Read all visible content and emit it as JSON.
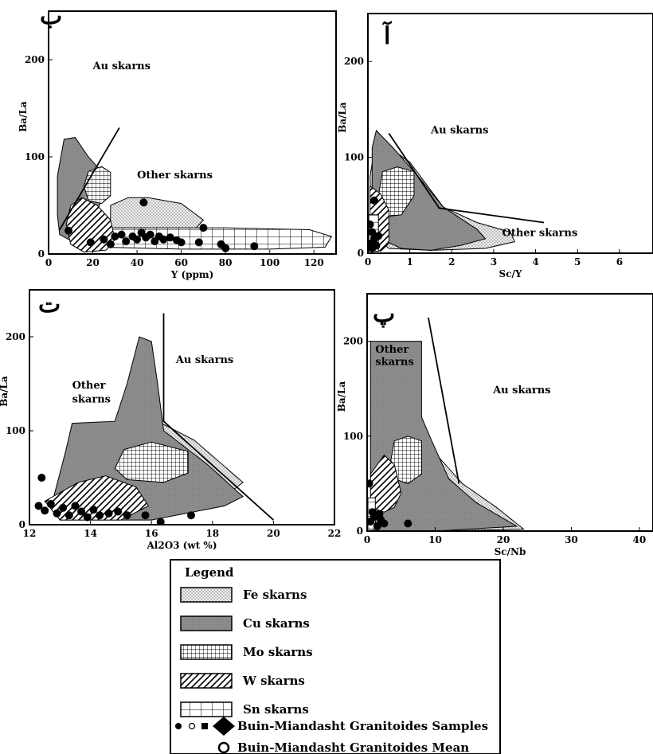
{
  "chart_data": [
    {
      "type": "scatter",
      "panel_letter": "ب",
      "xlabel": "Y (ppm)",
      "ylabel": "Ba/La",
      "xlim": [
        0,
        130
      ],
      "ylim": [
        0,
        250
      ],
      "xticks": [
        "0",
        "20",
        "40",
        "60",
        "80",
        "100",
        "120"
      ],
      "yticks": [
        "0",
        "100",
        "200"
      ],
      "zone_labels": [
        {
          "text": "Au skarns",
          "x": 20,
          "y": 190
        },
        {
          "text": "Other skarns",
          "x": 40,
          "y": 78
        }
      ],
      "boundary": [
        [
          5,
          25
        ],
        [
          32,
          130
        ]
      ],
      "fields": [
        {
          "name": "Fe skarns",
          "points": [
            [
              28,
              50
            ],
            [
              36,
              58
            ],
            [
              45,
              58
            ],
            [
              60,
              52
            ],
            [
              70,
              35
            ],
            [
              66,
              25
            ],
            [
              55,
              20
            ],
            [
              36,
              20
            ],
            [
              28,
              25
            ]
          ]
        },
        {
          "name": "Cu skarns",
          "points": [
            [
              7,
              118
            ],
            [
              12,
              120
            ],
            [
              18,
              100
            ],
            [
              25,
              82
            ],
            [
              25,
              60
            ],
            [
              20,
              35
            ],
            [
              14,
              25
            ],
            [
              9,
              15
            ],
            [
              5,
              20
            ],
            [
              4,
              40
            ],
            [
              4,
              80
            ]
          ]
        },
        {
          "name": "Sn skarns",
          "points": [
            [
              22,
              27
            ],
            [
              80,
              27
            ],
            [
              118,
              25
            ],
            [
              128,
              18
            ],
            [
              125,
              7
            ],
            [
              100,
              5
            ],
            [
              60,
              5
            ],
            [
              25,
              7
            ],
            [
              20,
              15
            ]
          ]
        },
        {
          "name": "Mo skarns",
          "points": [
            [
              18,
              85
            ],
            [
              24,
              90
            ],
            [
              28,
              84
            ],
            [
              28,
              60
            ],
            [
              24,
              52
            ],
            [
              18,
              55
            ],
            [
              16,
              70
            ]
          ]
        },
        {
          "name": "W skarns",
          "points": [
            [
              10,
              50
            ],
            [
              15,
              58
            ],
            [
              22,
              50
            ],
            [
              28,
              35
            ],
            [
              30,
              15
            ],
            [
              26,
              4
            ],
            [
              16,
              2
            ],
            [
              10,
              10
            ],
            [
              8,
              30
            ]
          ]
        }
      ],
      "samples": [
        {
          "x": 43,
          "y": 53
        },
        {
          "x": 70,
          "y": 27
        },
        {
          "x": 9,
          "y": 24
        },
        {
          "x": 19,
          "y": 12
        },
        {
          "x": 25,
          "y": 15
        },
        {
          "x": 30,
          "y": 18
        },
        {
          "x": 33,
          "y": 20
        },
        {
          "x": 35,
          "y": 13
        },
        {
          "x": 38,
          "y": 18
        },
        {
          "x": 40,
          "y": 15
        },
        {
          "x": 42,
          "y": 22
        },
        {
          "x": 44,
          "y": 17
        },
        {
          "x": 46,
          "y": 20
        },
        {
          "x": 48,
          "y": 13
        },
        {
          "x": 50,
          "y": 18
        },
        {
          "x": 52,
          "y": 15
        },
        {
          "x": 55,
          "y": 17
        },
        {
          "x": 58,
          "y": 14
        },
        {
          "x": 60,
          "y": 12
        },
        {
          "x": 68,
          "y": 12
        },
        {
          "x": 78,
          "y": 10
        },
        {
          "x": 80,
          "y": 6
        },
        {
          "x": 93,
          "y": 8
        },
        {
          "x": 28,
          "y": 10
        }
      ]
    },
    {
      "type": "scatter",
      "panel_letter": "آ",
      "xlabel": "Sc/Y",
      "ylabel": "Ba/La",
      "xlim": [
        0,
        6.8
      ],
      "ylim": [
        0,
        250
      ],
      "xticks": [
        "0",
        "1",
        "2",
        "3",
        "4",
        "5",
        "6"
      ],
      "yticks": [
        "0",
        "100",
        "200"
      ],
      "zone_labels": [
        {
          "text": "Au skarns",
          "x": 1.5,
          "y": 125
        },
        {
          "text": "Other skarns",
          "x": 3.2,
          "y": 18
        }
      ],
      "boundary": [
        [
          0.5,
          125
        ],
        [
          1.7,
          47
        ],
        [
          4.2,
          32
        ]
      ],
      "fields": [
        {
          "name": "Fe skarns",
          "points": [
            [
              0.2,
              120
            ],
            [
              1,
              95
            ],
            [
              1.8,
              48
            ],
            [
              2.6,
              32
            ],
            [
              3.4,
              22
            ],
            [
              3.5,
              12
            ],
            [
              2.8,
              5
            ],
            [
              1.5,
              3
            ],
            [
              0.5,
              5
            ],
            [
              0.1,
              20
            ],
            [
              0.05,
              80
            ]
          ]
        },
        {
          "name": "Cu skarns",
          "points": [
            [
              0.2,
              128
            ],
            [
              0.6,
              110
            ],
            [
              1.2,
              80
            ],
            [
              1.8,
              48
            ],
            [
              2.6,
              25
            ],
            [
              2.8,
              15
            ],
            [
              2.2,
              8
            ],
            [
              1.5,
              3
            ],
            [
              0.8,
              5
            ],
            [
              0.3,
              15
            ],
            [
              0.1,
              60
            ],
            [
              0.1,
              110
            ]
          ]
        },
        {
          "name": "Mo skarns",
          "points": [
            [
              0.35,
              85
            ],
            [
              0.7,
              90
            ],
            [
              1.1,
              85
            ],
            [
              1.1,
              60
            ],
            [
              0.8,
              40
            ],
            [
              0.4,
              38
            ],
            [
              0.25,
              60
            ]
          ]
        },
        {
          "name": "W skarns",
          "points": [
            [
              0.05,
              70
            ],
            [
              0.3,
              62
            ],
            [
              0.5,
              45
            ],
            [
              0.5,
              10
            ],
            [
              0.3,
              2
            ],
            [
              0.05,
              5
            ]
          ]
        },
        {
          "name": "Sn skarns",
          "points": [
            [
              0.02,
              40
            ],
            [
              0.25,
              40
            ],
            [
              0.25,
              2
            ],
            [
              0.02,
              2
            ]
          ]
        }
      ],
      "samples": [
        {
          "x": 0.15,
          "y": 55
        },
        {
          "x": 0.05,
          "y": 30
        },
        {
          "x": 0.1,
          "y": 22
        },
        {
          "x": 0.15,
          "y": 15
        },
        {
          "x": 0.05,
          "y": 10
        },
        {
          "x": 0.2,
          "y": 8
        },
        {
          "x": 0.1,
          "y": 5
        },
        {
          "x": 0.25,
          "y": 18
        }
      ]
    },
    {
      "type": "scatter",
      "panel_letter": "ت",
      "xlabel": "Al2O3 (wt %)",
      "ylabel": "Ba/La",
      "xlim": [
        12,
        22
      ],
      "ylim": [
        0,
        250
      ],
      "xticks": [
        "12",
        "14",
        "16",
        "18",
        "20",
        "22"
      ],
      "yticks": [
        "0",
        "100",
        "200"
      ],
      "zone_labels": [
        {
          "text": "Au skarns",
          "x": 16.8,
          "y": 172
        },
        {
          "text": "Other",
          "x": 13.4,
          "y": 145
        },
        {
          "text": "skarns",
          "x": 13.4,
          "y": 130
        }
      ],
      "boundary": [
        [
          16.4,
          225
        ],
        [
          16.4,
          110
        ],
        [
          20.0,
          5
        ]
      ],
      "fields": [
        {
          "name": "Fe skarns",
          "points": [
            [
              16.2,
              110
            ],
            [
              17.4,
              90
            ],
            [
              19.0,
              45
            ],
            [
              18.6,
              35
            ],
            [
              17.0,
              55
            ],
            [
              16.3,
              85
            ]
          ]
        },
        {
          "name": "Cu skarns",
          "points": [
            [
              13.4,
              108
            ],
            [
              14.8,
              110
            ],
            [
              15.2,
              150
            ],
            [
              15.6,
              200
            ],
            [
              16.0,
              195
            ],
            [
              16.2,
              150
            ],
            [
              16.4,
              100
            ],
            [
              17.8,
              65
            ],
            [
              19.0,
              30
            ],
            [
              18.4,
              20
            ],
            [
              16.0,
              5
            ],
            [
              13.0,
              5
            ],
            [
              12.8,
              30
            ],
            [
              13.2,
              80
            ]
          ]
        },
        {
          "name": "Mo skarns",
          "points": [
            [
              15.1,
              80
            ],
            [
              16.0,
              88
            ],
            [
              17.2,
              78
            ],
            [
              17.2,
              55
            ],
            [
              16.4,
              45
            ],
            [
              15.2,
              48
            ],
            [
              14.8,
              60
            ]
          ]
        },
        {
          "name": "W skarns",
          "points": [
            [
              12.5,
              25
            ],
            [
              13.6,
              45
            ],
            [
              14.5,
              52
            ],
            [
              15.5,
              40
            ],
            [
              15.9,
              20
            ],
            [
              15.0,
              5
            ],
            [
              13.0,
              5
            ]
          ]
        }
      ],
      "samples": [
        {
          "x": 12.4,
          "y": 50
        },
        {
          "x": 12.3,
          "y": 20
        },
        {
          "x": 12.5,
          "y": 15
        },
        {
          "x": 12.7,
          "y": 22
        },
        {
          "x": 12.9,
          "y": 12
        },
        {
          "x": 13.1,
          "y": 18
        },
        {
          "x": 13.3,
          "y": 10
        },
        {
          "x": 13.5,
          "y": 20
        },
        {
          "x": 13.7,
          "y": 14
        },
        {
          "x": 13.9,
          "y": 8
        },
        {
          "x": 14.1,
          "y": 16
        },
        {
          "x": 14.3,
          "y": 10
        },
        {
          "x": 14.6,
          "y": 12
        },
        {
          "x": 14.9,
          "y": 14
        },
        {
          "x": 15.2,
          "y": 10
        },
        {
          "x": 15.8,
          "y": 10
        },
        {
          "x": 16.3,
          "y": 3
        },
        {
          "x": 17.3,
          "y": 10
        }
      ]
    },
    {
      "type": "scatter",
      "panel_letter": "پ",
      "xlabel": "Sc/Nb",
      "ylabel": "Ba/La",
      "xlim": [
        0,
        42
      ],
      "ylim": [
        0,
        250
      ],
      "xticks": [
        "0",
        "10",
        "20",
        "30",
        "40"
      ],
      "yticks": [
        "0",
        "100",
        "200"
      ],
      "zone_labels": [
        {
          "text": "Other",
          "x": 1.2,
          "y": 188
        },
        {
          "text": "skarns",
          "x": 1.2,
          "y": 175
        },
        {
          "text": "Au skarns",
          "x": 18.5,
          "y": 145
        }
      ],
      "boundary": [
        [
          9.0,
          225
        ],
        [
          13.5,
          50
        ]
      ],
      "fields": [
        {
          "name": "Fe skarns",
          "points": [
            [
              1,
              90
            ],
            [
              9,
              90
            ],
            [
              14,
              50
            ],
            [
              19,
              25
            ],
            [
              23,
              2
            ],
            [
              10,
              0
            ],
            [
              1,
              3
            ]
          ]
        },
        {
          "name": "Cu skarns",
          "points": [
            [
              0.5,
              200
            ],
            [
              8,
              200
            ],
            [
              8,
              120
            ],
            [
              9.5,
              95
            ],
            [
              12,
              55
            ],
            [
              16,
              30
            ],
            [
              22,
              5
            ],
            [
              10,
              0
            ],
            [
              1,
              0
            ],
            [
              0.5,
              60
            ]
          ]
        },
        {
          "name": "Mo skarns",
          "points": [
            [
              4,
              95
            ],
            [
              6,
              100
            ],
            [
              8,
              95
            ],
            [
              8,
              60
            ],
            [
              6,
              50
            ],
            [
              4,
              55
            ],
            [
              3.5,
              75
            ]
          ]
        },
        {
          "name": "W skarns",
          "points": [
            [
              0.5,
              60
            ],
            [
              2.5,
              80
            ],
            [
              4,
              70
            ],
            [
              5,
              40
            ],
            [
              4,
              25
            ],
            [
              2.5,
              20
            ],
            [
              0.5,
              25
            ]
          ]
        },
        {
          "name": "Sn skarns",
          "points": [
            [
              0.1,
              35
            ],
            [
              1.2,
              35
            ],
            [
              1.2,
              2
            ],
            [
              0.1,
              2
            ]
          ]
        }
      ],
      "samples": [
        {
          "x": 0.3,
          "y": 50
        },
        {
          "x": 0.5,
          "y": 10
        },
        {
          "x": 1.0,
          "y": 15
        },
        {
          "x": 1.5,
          "y": 5
        },
        {
          "x": 2.0,
          "y": 12
        },
        {
          "x": 2.5,
          "y": 8
        },
        {
          "x": 0.8,
          "y": 20
        },
        {
          "x": 1.8,
          "y": 18
        },
        {
          "x": 6.0,
          "y": 8
        }
      ]
    }
  ],
  "legend": {
    "title": "Legend",
    "items": [
      {
        "label": "Fe skarns",
        "pattern": "dots"
      },
      {
        "label": "Cu skarns",
        "pattern": "gray"
      },
      {
        "label": "Mo skarns",
        "pattern": "fine-grid"
      },
      {
        "label": "W skarns",
        "pattern": "diagonal-hatch"
      },
      {
        "label": "Sn skarns",
        "pattern": "coarse-grid"
      }
    ],
    "samples_label": "Buin-Miandasht Granitoides Samples",
    "mean_label": "Buin-Miandasht Granitoides Mean"
  }
}
